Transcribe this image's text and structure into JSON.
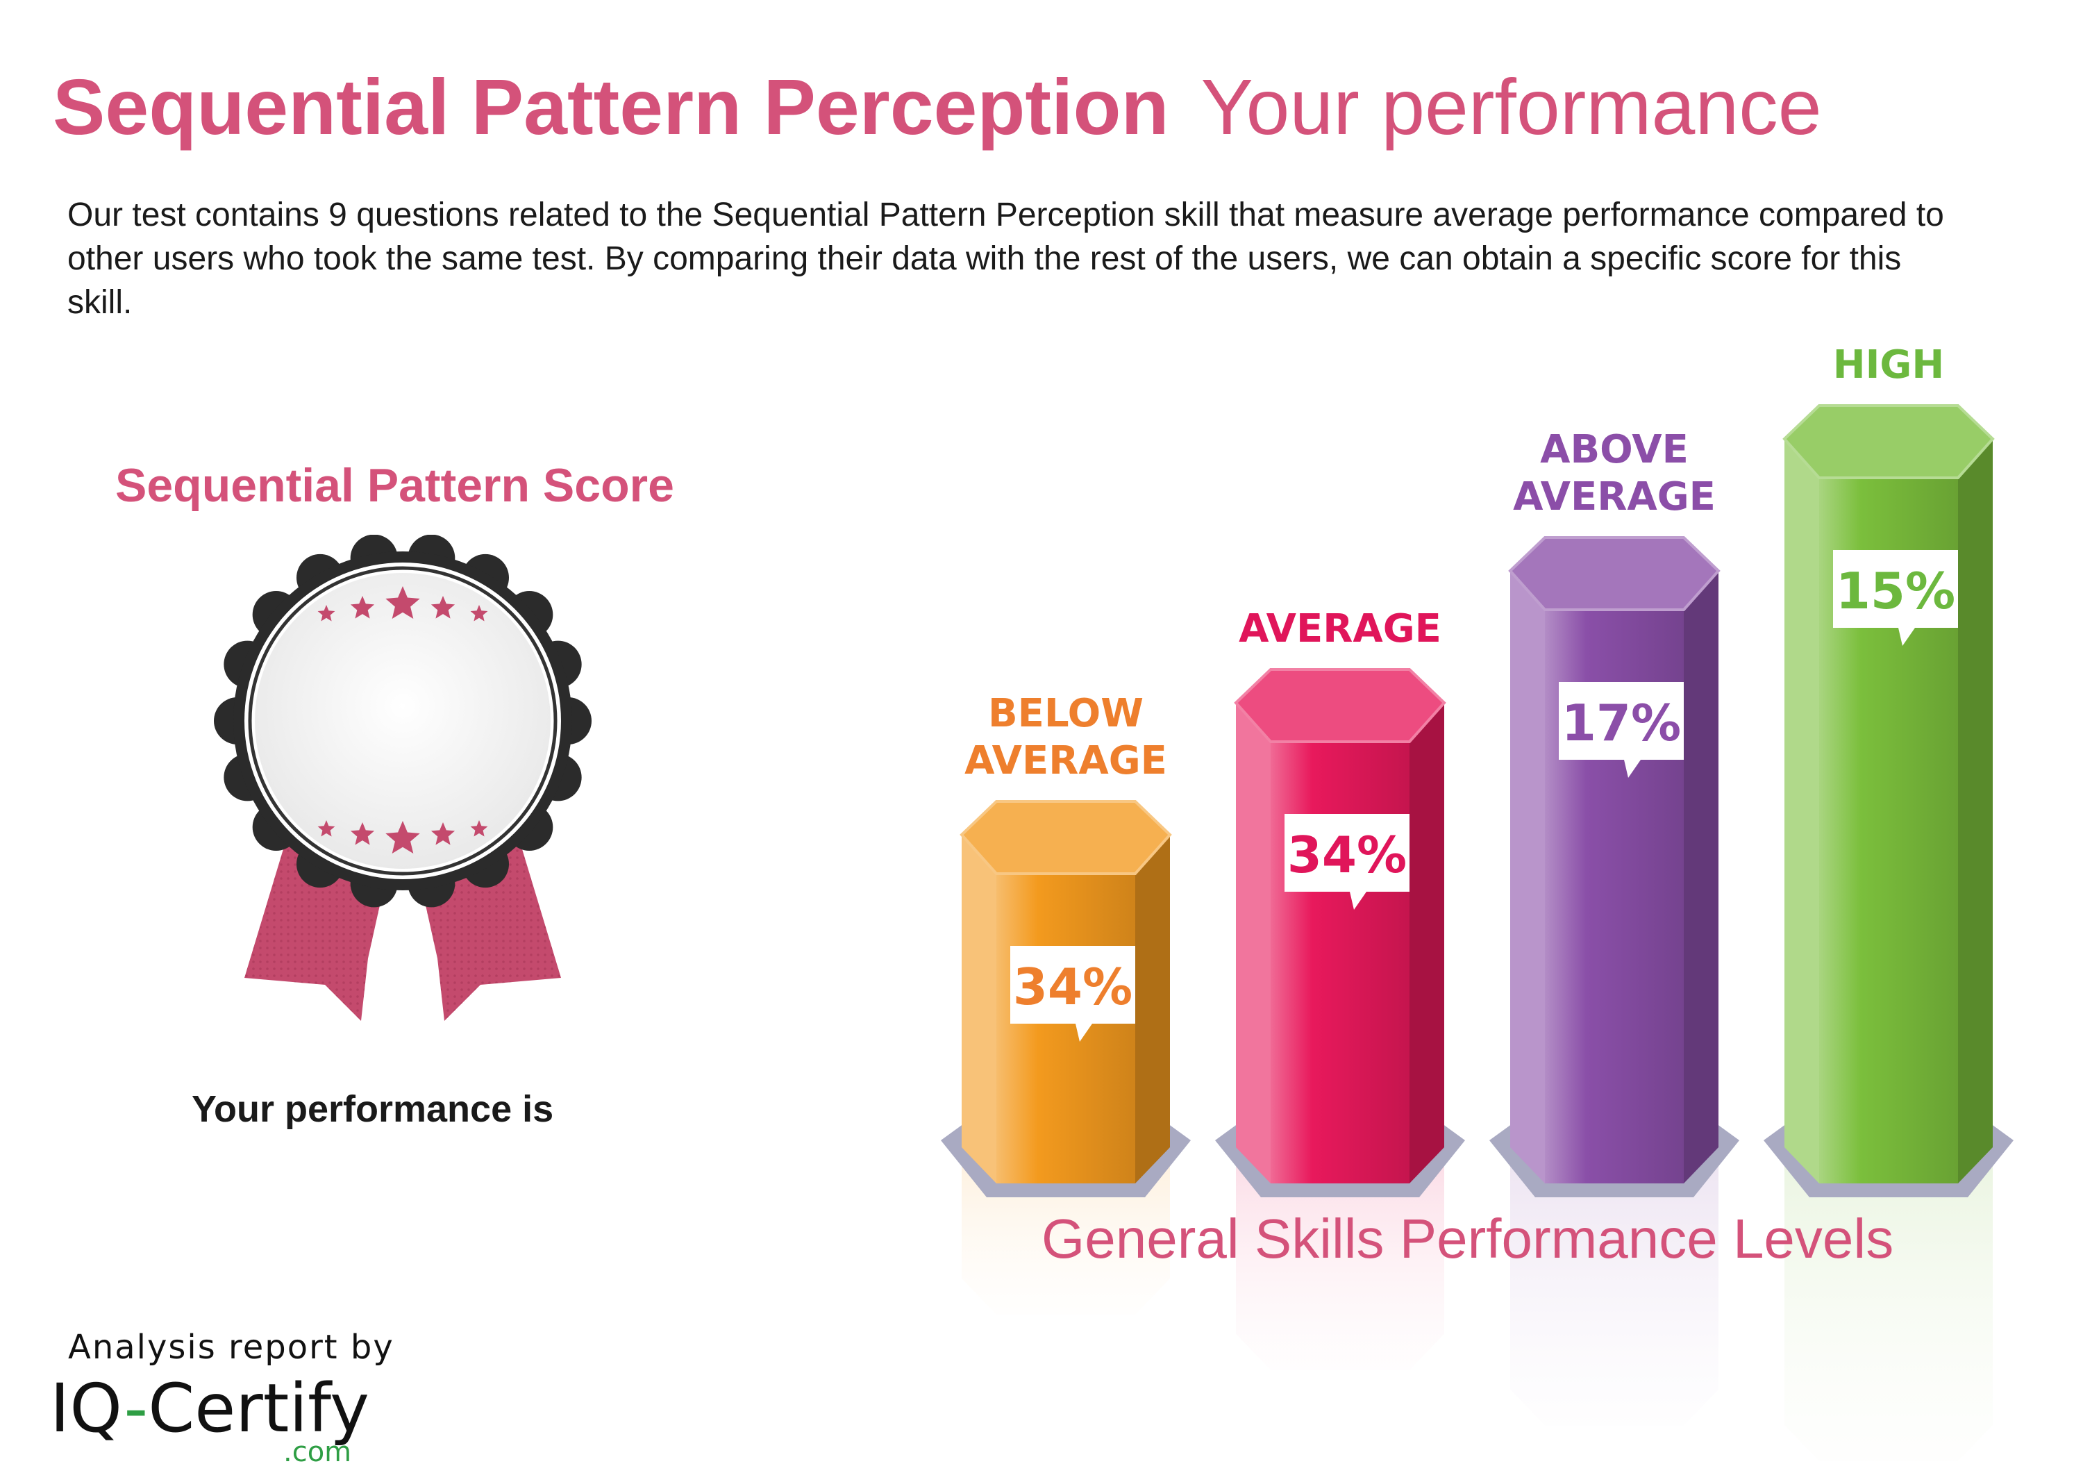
{
  "header": {
    "title_strong": "Sequential Pattern Perception",
    "title_light": "Your performance",
    "intro": "Our test contains 9 questions related to the Sequential Pattern Perception skill that measure average performance compared to other users who took the same test. By comparing their data with the rest of the users, we can obtain a specific score for this skill."
  },
  "score": {
    "heading": "Sequential Pattern Score",
    "performance_label": "Your performance is"
  },
  "chart_data": {
    "type": "bar",
    "title": "General Skills Performance Levels",
    "categories": [
      "BELOW AVERAGE",
      "AVERAGE",
      "ABOVE AVERAGE",
      "HIGH"
    ],
    "category_lines": [
      [
        "BELOW",
        "AVERAGE"
      ],
      [
        "AVERAGE"
      ],
      [
        "ABOVE",
        "AVERAGE"
      ],
      [
        "HIGH"
      ]
    ],
    "values": [
      34,
      34,
      17,
      15
    ],
    "value_labels": [
      "34%",
      "34%",
      "17%",
      "15%"
    ],
    "colors": [
      "#f39a1e",
      "#e8195c",
      "#8a4fa8",
      "#7bbf3c"
    ],
    "label_colors": [
      "#ee7f2d",
      "#e0155a",
      "#8b4ea8",
      "#6cb83e"
    ],
    "grid": false,
    "legend": "none"
  },
  "brand": {
    "by": "Analysis report by",
    "name_part1": "IQ",
    "name_dash": "-",
    "name_part2": "Certify",
    "tld": ".com"
  }
}
